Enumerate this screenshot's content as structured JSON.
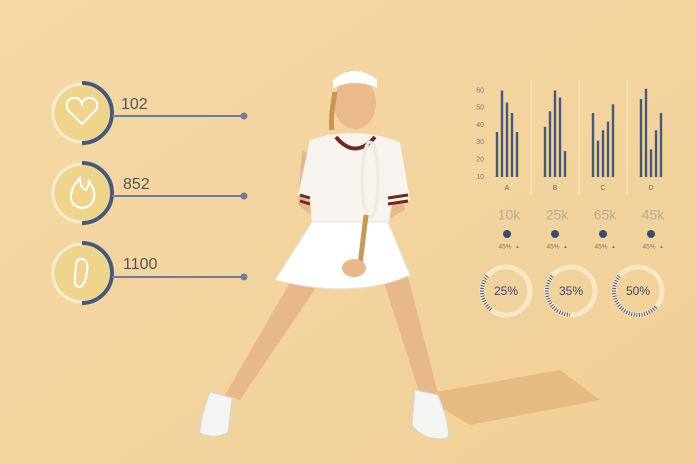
{
  "metrics": [
    102,
    852,
    1100
  ],
  "mini_chart": {
    "type": "bar",
    "ylim": [
      10,
      62
    ],
    "yticks": [
      10,
      20,
      30,
      40,
      50,
      60
    ],
    "categories": [
      "A",
      "B",
      "C",
      "D"
    ],
    "groups": [
      [
        36,
        60,
        53,
        47,
        36
      ],
      [
        39,
        48,
        60,
        56,
        25
      ],
      [
        47,
        31,
        37,
        42,
        52
      ],
      [
        55,
        61,
        26,
        37,
        47
      ]
    ]
  },
  "stats": {
    "totals": [
      "10k",
      "25k",
      "65k",
      "45k"
    ],
    "changes": [
      "45%",
      "45%",
      "45%",
      "45%"
    ]
  },
  "gauges": {
    "values": [
      25,
      35,
      50
    ],
    "value_labels": [
      "25%",
      "35%",
      "50%"
    ]
  }
}
